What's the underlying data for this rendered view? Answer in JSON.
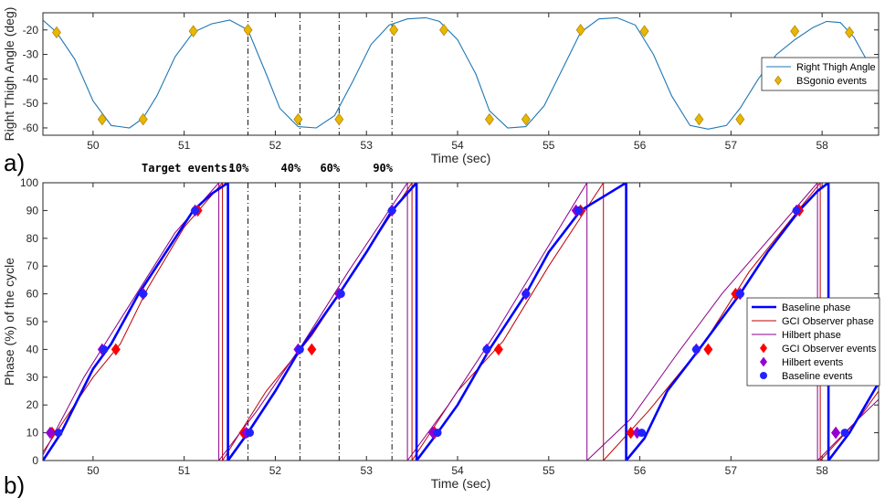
{
  "panel_labels": [
    "a)",
    "b)"
  ],
  "target_label": "Target events:",
  "chart_data": [
    {
      "type": "line",
      "xlabel": "Time (sec)",
      "ylabel": "Right Thigh Angle (deg)",
      "xlim": [
        49.45,
        58.62
      ],
      "ylim": [
        -63,
        -13
      ],
      "xticks": [
        50,
        51,
        52,
        53,
        54,
        55,
        56,
        57,
        58
      ],
      "yticks": [
        -20,
        -30,
        -40,
        -50,
        -60
      ],
      "legend_position": "right",
      "colors": {
        "angle": "#1f77b4",
        "events": "#e6b800",
        "events_edge": "#b8860b",
        "vlines": "#000000"
      },
      "series": [
        {
          "name": "Right Thigh Angle",
          "x": [
            49.45,
            49.6,
            49.8,
            50.0,
            50.2,
            50.4,
            50.55,
            50.7,
            50.9,
            51.1,
            51.3,
            51.5,
            51.7,
            51.9,
            52.05,
            52.25,
            52.45,
            52.65,
            52.85,
            53.05,
            53.25,
            53.45,
            53.65,
            53.8,
            54.0,
            54.2,
            54.35,
            54.55,
            54.75,
            54.95,
            55.15,
            55.35,
            55.55,
            55.75,
            55.95,
            56.15,
            56.35,
            56.55,
            56.75,
            56.95,
            57.1,
            57.3,
            57.5,
            57.7,
            57.9,
            58.05,
            58.2,
            58.35,
            58.5,
            58.62
          ],
          "y": [
            -16,
            -21,
            -32,
            -49,
            -59,
            -60,
            -56,
            -47,
            -31,
            -21,
            -17.5,
            -16,
            -20,
            -38,
            -52,
            -59.5,
            -60,
            -55,
            -41,
            -26,
            -18,
            -15.5,
            -15,
            -16.5,
            -24,
            -38,
            -53,
            -60,
            -59.5,
            -51,
            -36,
            -21,
            -15.5,
            -15,
            -18,
            -30,
            -47,
            -59,
            -60.5,
            -59,
            -52,
            -40,
            -30,
            -24,
            -19,
            -16.5,
            -17,
            -23,
            -33,
            -38
          ]
        },
        {
          "name": "BSgonio events",
          "x": [
            49.6,
            50.1,
            50.55,
            51.1,
            51.7,
            52.25,
            52.7,
            53.3,
            53.85,
            54.35,
            54.75,
            55.35,
            56.05,
            56.65,
            57.1,
            57.7,
            58.3
          ],
          "y": [
            -21,
            -56.5,
            -56.5,
            -20.5,
            -20,
            -56.5,
            -56.5,
            -20,
            -20,
            -56.5,
            -56.5,
            -20,
            -20.5,
            -56.5,
            -56.5,
            -20.5,
            -21
          ]
        }
      ],
      "vlines": [
        51.7,
        52.27,
        52.7,
        53.28
      ]
    },
    {
      "type": "line",
      "xlabel": "Time (sec)",
      "ylabel": "Phase (%) of the cycle",
      "xlim": [
        49.45,
        58.62
      ],
      "ylim": [
        0,
        100
      ],
      "xticks": [
        50,
        51,
        52,
        53,
        54,
        55,
        56,
        57,
        58
      ],
      "yticks": [
        0,
        10,
        20,
        30,
        40,
        50,
        60,
        70,
        80,
        90,
        100
      ],
      "legend_position": "right",
      "target_events": [
        "10%",
        "40%",
        "60%",
        "90%"
      ],
      "vlines": [
        51.7,
        52.27,
        52.7,
        53.28
      ],
      "colors": {
        "baseline": "#0000ff",
        "gci": "#c00000",
        "hilbert": "#8b008b",
        "gci_events": "#ff0000",
        "hilbert_events": "#9400d3",
        "baseline_events": "#2222ff"
      },
      "series": [
        {
          "name": "Baseline phase",
          "segments": [
            {
              "x": [
                49.45,
                49.65,
                50.0,
                50.2,
                50.5,
                50.8,
                51.1,
                51.3,
                51.48
              ],
              "y": [
                0,
                10,
                33,
                42,
                60,
                75,
                90,
                96,
                100
              ]
            },
            {
              "x": [
                51.48,
                51.7,
                52.0,
                52.27,
                52.7,
                53.0,
                53.28,
                53.55
              ],
              "y": [
                0,
                10,
                25,
                40,
                60,
                75,
                90,
                100
              ]
            },
            {
              "x": [
                53.55,
                53.78,
                54.0,
                54.35,
                54.75,
                55.0,
                55.35,
                55.6,
                55.85
              ],
              "y": [
                0,
                10,
                20,
                40,
                60,
                75,
                90,
                95,
                100
              ]
            },
            {
              "x": [
                55.85,
                56.05,
                56.3,
                56.65,
                57.1,
                57.4,
                57.75,
                57.95,
                58.07
              ],
              "y": [
                0,
                8,
                25,
                40,
                60,
                75,
                90,
                97,
                100
              ]
            },
            {
              "x": [
                58.07,
                58.3,
                58.62
              ],
              "y": [
                0,
                10,
                28
              ]
            }
          ]
        },
        {
          "name": "GCI Observer phase",
          "segments": [
            {
              "x": [
                49.45,
                50.0,
                50.3,
                50.6,
                51.0,
                51.42
              ],
              "y": [
                3,
                30,
                42,
                62,
                84,
                100
              ]
            },
            {
              "x": [
                51.42,
                51.9,
                52.4,
                52.9,
                53.5
              ],
              "y": [
                0,
                25,
                45,
                70,
                100
              ]
            },
            {
              "x": [
                53.5,
                54.0,
                54.5,
                55.0,
                55.6
              ],
              "y": [
                0,
                25,
                43,
                70,
                100
              ]
            },
            {
              "x": [
                55.6,
                56.1,
                56.7,
                57.2,
                57.98
              ],
              "y": [
                0,
                18,
                42,
                68,
                100
              ]
            },
            {
              "x": [
                57.98,
                58.4,
                58.62
              ],
              "y": [
                0,
                15,
                25
              ]
            }
          ]
        },
        {
          "name": "Hilbert phase",
          "segments": [
            {
              "x": [
                49.45,
                49.9,
                50.4,
                50.9,
                51.38
              ],
              "y": [
                2,
                30,
                56,
                82,
                100
              ]
            },
            {
              "x": [
                51.38,
                51.8,
                52.3,
                52.8,
                53.45
              ],
              "y": [
                0,
                18,
                42,
                68,
                100
              ]
            },
            {
              "x": [
                53.45,
                53.9,
                54.4,
                54.9,
                55.42
              ],
              "y": [
                0,
                20,
                45,
                72,
                100
              ]
            },
            {
              "x": [
                55.42,
                55.9,
                56.4,
                56.9,
                57.95
              ],
              "y": [
                0,
                15,
                38,
                60,
                100
              ]
            },
            {
              "x": [
                57.95,
                58.4,
                58.62
              ],
              "y": [
                0,
                15,
                22
              ]
            }
          ]
        },
        {
          "name": "GCI Observer events",
          "x": [
            49.55,
            50.25,
            50.55,
            51.15,
            51.65,
            52.4,
            52.7,
            53.28,
            53.75,
            54.45,
            54.75,
            55.35,
            55.9,
            56.75,
            57.05,
            57.75,
            58.15
          ],
          "y": [
            10,
            40,
            60,
            90,
            10,
            40,
            60,
            90,
            10,
            40,
            60,
            90,
            10,
            40,
            60,
            90,
            10
          ]
        },
        {
          "name": "Hilbert events",
          "x": [
            49.53,
            50.1,
            50.55,
            51.12,
            51.68,
            52.25,
            52.7,
            53.28,
            53.73,
            54.32,
            54.75,
            55.3,
            55.97,
            56.62,
            57.1,
            57.72,
            58.15
          ],
          "y": [
            10,
            40,
            60,
            90,
            10,
            40,
            60,
            90,
            10,
            40,
            60,
            90,
            10,
            40,
            60,
            90,
            10
          ]
        },
        {
          "name": "Baseline events",
          "x": [
            49.62,
            50.12,
            50.55,
            51.12,
            51.72,
            52.27,
            52.72,
            53.28,
            53.78,
            54.32,
            54.75,
            55.33,
            56.02,
            56.62,
            57.1,
            57.72,
            58.25
          ],
          "y": [
            10,
            40,
            60,
            90,
            10,
            40,
            60,
            90,
            10,
            40,
            60,
            90,
            10,
            40,
            60,
            90,
            10
          ]
        }
      ]
    }
  ]
}
